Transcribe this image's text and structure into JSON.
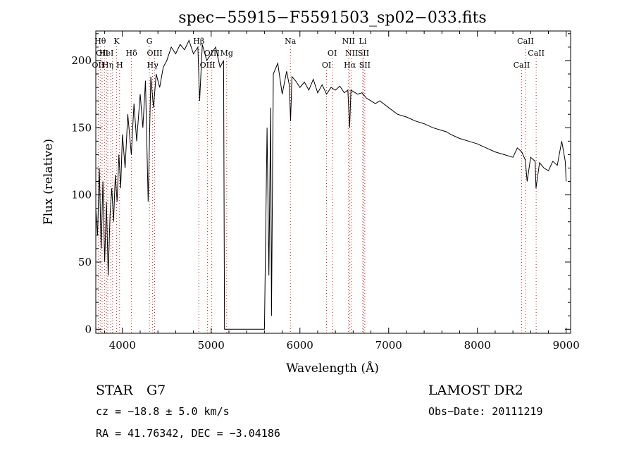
{
  "chart_data": {
    "type": "line",
    "title": "spec−55915−F5591503_sp02−033.fits",
    "xlabel": "Wavelength (Å)",
    "ylabel": "Flux (relative)",
    "xlim": [
      3700,
      9050
    ],
    "ylim": [
      -3,
      222
    ],
    "xticks": [
      4000,
      5000,
      6000,
      7000,
      8000,
      9000
    ],
    "yticks": [
      0,
      50,
      100,
      150,
      200
    ],
    "grid": false,
    "series": [
      {
        "x": [
          3700,
          3720,
          3740,
          3760,
          3780,
          3800,
          3820,
          3840,
          3860,
          3880,
          3900,
          3920,
          3940,
          3960,
          3980,
          4000,
          4030,
          4060,
          4100,
          4130,
          4160,
          4200,
          4230,
          4260,
          4290,
          4320,
          4350,
          4380,
          4420,
          4460,
          4500,
          4550,
          4600,
          4650,
          4700,
          4750,
          4800,
          4850,
          4870,
          4900,
          4950,
          5000,
          5050,
          5100,
          5140,
          5150,
          5600,
          5630,
          5650,
          5670,
          5680,
          5700,
          5750,
          5800,
          5850,
          5880,
          5895,
          5910,
          5950,
          6000,
          6050,
          6100,
          6150,
          6200,
          6250,
          6300,
          6350,
          6400,
          6450,
          6500,
          6540,
          6560,
          6575,
          6600,
          6650,
          6700,
          6750,
          6800,
          6850,
          6900,
          7000,
          7100,
          7200,
          7300,
          7400,
          7500,
          7600,
          7650,
          7700,
          7800,
          7900,
          8000,
          8100,
          8200,
          8300,
          8400,
          8450,
          8500,
          8540,
          8560,
          8600,
          8650,
          8660,
          8700,
          8750,
          8800,
          8850,
          8900,
          8950,
          8990,
          9000
        ],
        "values": [
          90,
          70,
          120,
          60,
          110,
          50,
          95,
          40,
          85,
          105,
          80,
          115,
          95,
          130,
          105,
          145,
          120,
          160,
          130,
          168,
          140,
          175,
          150,
          185,
          95,
          188,
          165,
          190,
          180,
          195,
          200,
          210,
          205,
          212,
          208,
          215,
          205,
          210,
          170,
          212,
          200,
          205,
          210,
          195,
          200,
          0,
          0,
          150,
          40,
          165,
          10,
          190,
          198,
          175,
          192,
          182,
          155,
          188,
          185,
          180,
          184,
          178,
          186,
          176,
          182,
          175,
          180,
          178,
          181,
          176,
          178,
          150,
          178,
          177,
          175,
          176,
          172,
          170,
          168,
          170,
          165,
          160,
          158,
          155,
          153,
          150,
          148,
          147,
          145,
          142,
          140,
          138,
          135,
          132,
          130,
          128,
          135,
          132,
          126,
          110,
          128,
          125,
          105,
          124,
          120,
          118,
          125,
          122,
          140,
          125,
          110
        ]
      }
    ],
    "line_markers": [
      {
        "wavelength": 3727,
        "row": 2,
        "label": "OII"
      },
      {
        "wavelength": 3750,
        "row": 0,
        "label": "Hθ"
      },
      {
        "wavelength": 3771,
        "row": 1,
        "label": "OII"
      },
      {
        "wavelength": 3798,
        "row": 0,
        "label": ""
      },
      {
        "wavelength": 3820,
        "row": 1,
        "label": "HeI"
      },
      {
        "wavelength": 3835,
        "row": 2,
        "label": "Hη"
      },
      {
        "wavelength": 3869,
        "row": 2,
        "label": ""
      },
      {
        "wavelength": 3889,
        "row": 1,
        "label": ""
      },
      {
        "wavelength": 3934,
        "row": 0,
        "label": "K"
      },
      {
        "wavelength": 3968,
        "row": 2,
        "label": "H"
      },
      {
        "wavelength": 4102,
        "row": 1,
        "label": "Hδ"
      },
      {
        "wavelength": 4304,
        "row": 0,
        "label": "G"
      },
      {
        "wavelength": 4340,
        "row": 2,
        "label": "Hγ"
      },
      {
        "wavelength": 4363,
        "row": 1,
        "label": "OIII"
      },
      {
        "wavelength": 4861,
        "row": 0,
        "label": "Hβ"
      },
      {
        "wavelength": 4959,
        "row": 2,
        "label": "OIII"
      },
      {
        "wavelength": 5007,
        "row": 1,
        "label": "OIII"
      },
      {
        "wavelength": 5175,
        "row": 1,
        "label": "Mg"
      },
      {
        "wavelength": 5893,
        "row": 0,
        "label": "Na"
      },
      {
        "wavelength": 6300,
        "row": 2,
        "label": "OI"
      },
      {
        "wavelength": 6364,
        "row": 1,
        "label": "OI"
      },
      {
        "wavelength": 6548,
        "row": 0,
        "label": "NII"
      },
      {
        "wavelength": 6563,
        "row": 2,
        "label": "Hα"
      },
      {
        "wavelength": 6583,
        "row": 1,
        "label": "NII"
      },
      {
        "wavelength": 6708,
        "row": 0,
        "label": "Li"
      },
      {
        "wavelength": 6716,
        "row": 1,
        "label": "SII"
      },
      {
        "wavelength": 6731,
        "row": 2,
        "label": "SII"
      },
      {
        "wavelength": 8498,
        "row": 2,
        "label": "CaII"
      },
      {
        "wavelength": 8542,
        "row": 0,
        "label": "CaII"
      },
      {
        "wavelength": 8662,
        "row": 1,
        "label": "CaII"
      }
    ],
    "line_colors": {
      "spectrum": "#000000",
      "marker": "#d02020"
    }
  },
  "info": {
    "object_class": "STAR",
    "subclass": "G7",
    "survey": "LAMOST DR2",
    "redshift": "cz = −18.8 ± 5.0 km/s",
    "obs_date": "Obs−Date: 20111219",
    "coordinates": "RA =  41.76342, DEC =  −3.04186"
  }
}
